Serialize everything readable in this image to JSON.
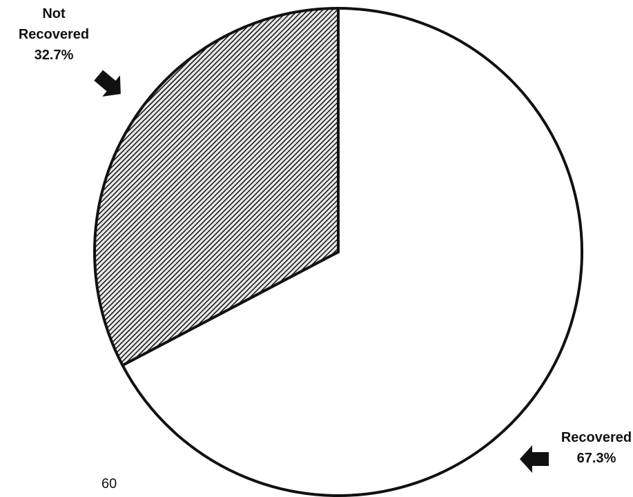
{
  "chart_data": {
    "type": "pie",
    "slices": [
      {
        "label_lines": [
          "Not",
          "Recovered"
        ],
        "value": 32.7,
        "value_text": "32.7%",
        "fill": "hatched"
      },
      {
        "label_lines": [
          "Recovered"
        ],
        "value": 67.3,
        "value_text": "67.3%",
        "fill": "white"
      }
    ]
  },
  "page_number": "60",
  "colors": {
    "ink": "#111111",
    "background": "#ffffff"
  },
  "icons": [
    "arrow-icon",
    "arrow-icon"
  ]
}
